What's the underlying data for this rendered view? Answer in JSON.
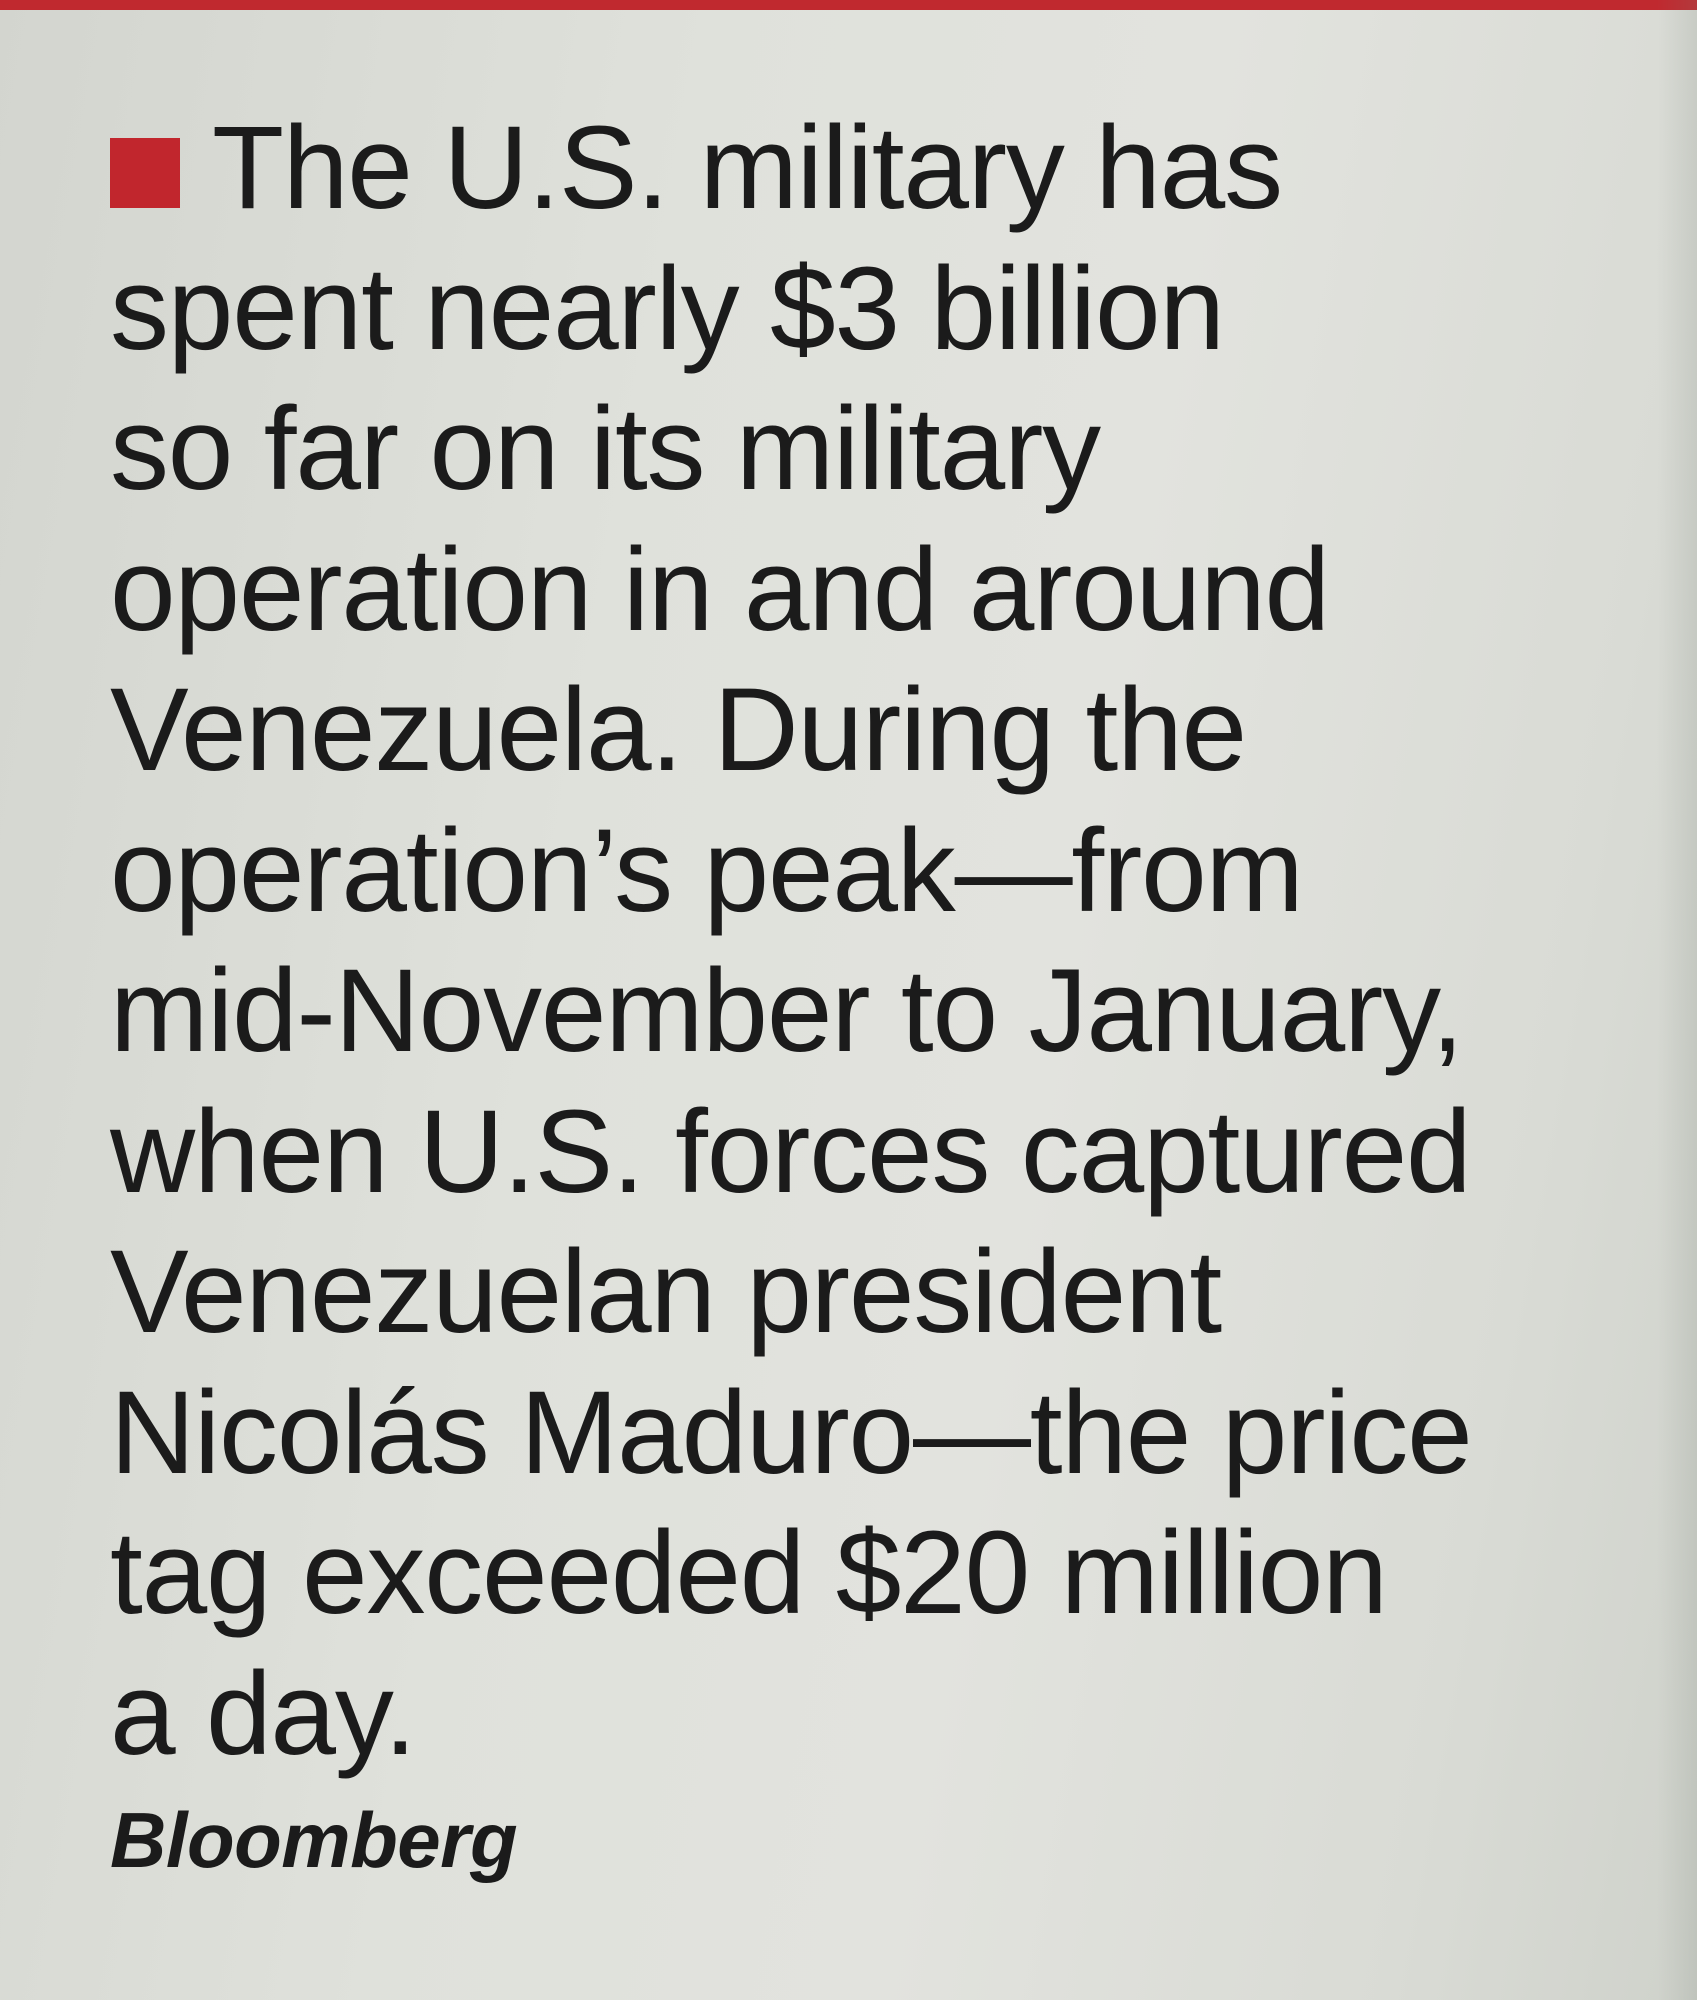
{
  "colors": {
    "accent_bullet": "#c1262d",
    "top_rule": "#c0292f",
    "paper": "#dcdfd9",
    "ink": "#1b1b1b"
  },
  "brief": {
    "lines": [
      "The U.S. military has",
      "spent nearly $3 billion",
      "so far on its military",
      "operation in and around",
      "Venezuela. During the",
      "operation’s peak—from",
      "mid-November to January,",
      "when U.S. forces captured",
      "Venezuelan president",
      "Nicolás Maduro—the price",
      "tag exceeded $20 million",
      "a day."
    ],
    "source": "Bloomberg"
  }
}
